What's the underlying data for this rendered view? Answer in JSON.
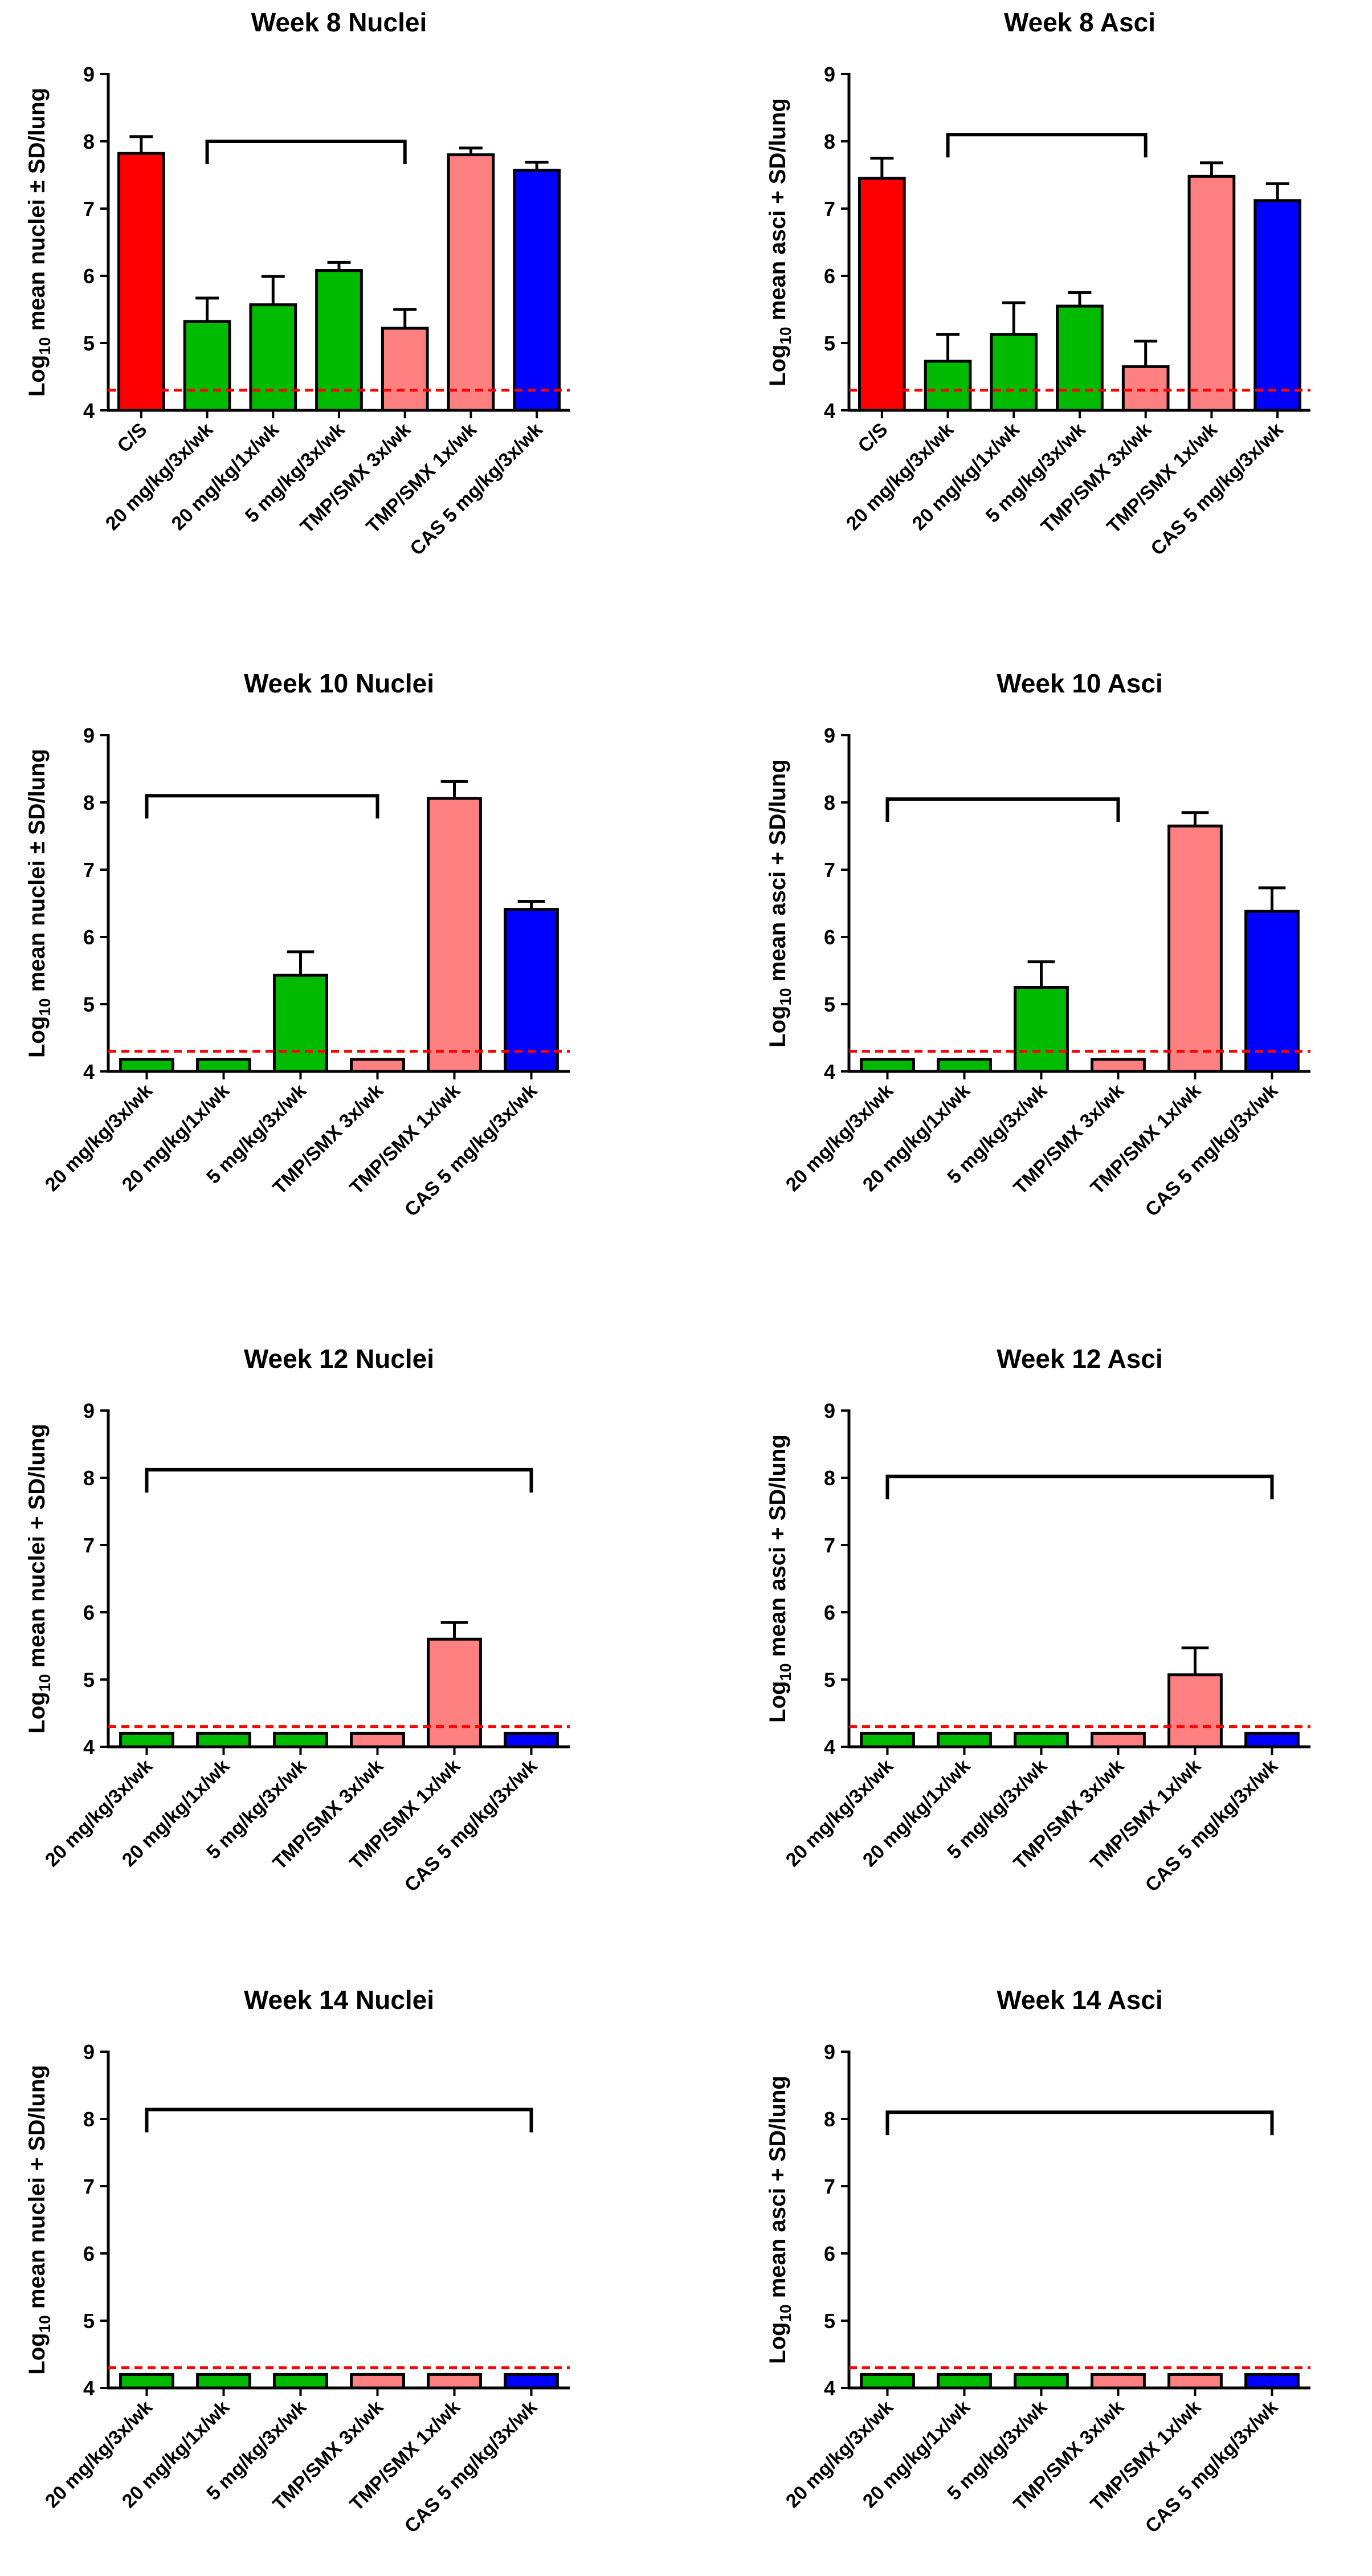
{
  "colors": {
    "red": "#ff0000",
    "green": "#00bb00",
    "pink": "#ff8080",
    "blue": "#0000ff",
    "dashed": "#ff0000",
    "axis": "#000000"
  },
  "chart_data": [
    {
      "type": "bar",
      "title": "Week 8  Nuclei",
      "ylabel_prefix": "Log",
      "ylabel_sub": "10",
      "ylabel_suffix": " mean nuclei ± SD/lung",
      "ylim": [
        4,
        9
      ],
      "yticks": [
        "4",
        "5",
        "6",
        "7",
        "8",
        "9"
      ],
      "detection_limit": 4.3,
      "categories": [
        "C/S",
        "20 mg/kg/3x/wk",
        "20 mg/kg/1x/wk",
        "5 mg/kg/3x/wk",
        "TMP/SMX 3x/wk",
        "TMP/SMX 1x/wk",
        "CAS 5 mg/kg/3x/wk"
      ],
      "values": [
        7.82,
        5.32,
        5.57,
        6.08,
        5.22,
        7.8,
        7.57
      ],
      "errors": [
        0.25,
        0.35,
        0.42,
        0.12,
        0.28,
        0.1,
        0.12
      ],
      "colors": [
        "red",
        "green",
        "green",
        "green",
        "pink",
        "pink",
        "blue"
      ],
      "bracket": {
        "from": 1,
        "to": 4,
        "y": 8.0
      }
    },
    {
      "type": "bar",
      "title": "Week 8 Asci",
      "ylabel_prefix": "Log",
      "ylabel_sub": "10",
      "ylabel_suffix": " mean asci + SD/lung",
      "ylim": [
        4,
        9
      ],
      "yticks": [
        "4",
        "5",
        "6",
        "7",
        "8",
        "9"
      ],
      "detection_limit": 4.3,
      "categories": [
        "C/S",
        "20 mg/kg/3x/wk",
        "20 mg/kg/1x/wk",
        "5 mg/kg/3x/wk",
        "TMP/SMX 3x/wk",
        "TMP/SMX 1x/wk",
        "CAS 5 mg/kg/3x/wk"
      ],
      "values": [
        7.45,
        4.73,
        5.13,
        5.55,
        4.65,
        7.48,
        7.12
      ],
      "errors": [
        0.3,
        0.4,
        0.47,
        0.2,
        0.38,
        0.2,
        0.25
      ],
      "colors": [
        "red",
        "green",
        "green",
        "green",
        "pink",
        "pink",
        "blue"
      ],
      "bracket": {
        "from": 1,
        "to": 4,
        "y": 8.1
      }
    },
    {
      "type": "bar",
      "title": "Week 10 Nuclei",
      "ylabel_prefix": "Log",
      "ylabel_sub": "10",
      "ylabel_suffix": " mean nuclei ± SD/lung",
      "ylim": [
        4,
        9
      ],
      "yticks": [
        "4",
        "5",
        "6",
        "7",
        "8",
        "9"
      ],
      "detection_limit": 4.3,
      "categories": [
        "20 mg/kg/3x/wk",
        "20 mg/kg/1x/wk",
        "5 mg/kg/3x/wk",
        "TMP/SMX 3x/wk",
        "TMP/SMX 1x/wk",
        "CAS 5 mg/kg/3x/wk"
      ],
      "values": [
        4.18,
        4.18,
        5.43,
        4.18,
        8.06,
        6.41
      ],
      "errors": [
        0,
        0,
        0.35,
        0,
        0.25,
        0.12
      ],
      "colors": [
        "green",
        "green",
        "green",
        "pink",
        "pink",
        "blue"
      ],
      "bracket": {
        "from": 0,
        "to": 3,
        "y": 8.1
      }
    },
    {
      "type": "bar",
      "title": "Week 10 Asci",
      "ylabel_prefix": "Log",
      "ylabel_sub": "10",
      "ylabel_suffix": " mean asci + SD/lung",
      "ylim": [
        4,
        9
      ],
      "yticks": [
        "4",
        "5",
        "6",
        "7",
        "8",
        "9"
      ],
      "detection_limit": 4.3,
      "categories": [
        "20 mg/kg/3x/wk",
        "20 mg/kg/1x/wk",
        "5 mg/kg/3x/wk",
        "TMP/SMX 3x/wk",
        "TMP/SMX 1x/wk",
        "CAS 5 mg/kg/3x/wk"
      ],
      "values": [
        4.18,
        4.18,
        5.25,
        4.18,
        7.65,
        6.38
      ],
      "errors": [
        0,
        0,
        0.38,
        0,
        0.2,
        0.35
      ],
      "colors": [
        "green",
        "green",
        "green",
        "pink",
        "pink",
        "blue"
      ],
      "bracket": {
        "from": 0,
        "to": 3,
        "y": 8.05
      }
    },
    {
      "type": "bar",
      "title": "Week 12 Nuclei",
      "ylabel_prefix": "Log",
      "ylabel_sub": "10",
      "ylabel_suffix": " mean nuclei + SD/lung",
      "ylim": [
        4,
        9
      ],
      "yticks": [
        "4",
        "5",
        "6",
        "7",
        "8",
        "9"
      ],
      "detection_limit": 4.3,
      "categories": [
        "20 mg/kg/3x/wk",
        "20 mg/kg/1x/wk",
        "5 mg/kg/3x/wk",
        "TMP/SMX 3x/wk",
        "TMP/SMX 1x/wk",
        "CAS 5 mg/kg/3x/wk"
      ],
      "values": [
        4.2,
        4.2,
        4.2,
        4.2,
        5.6,
        4.2
      ],
      "errors": [
        0,
        0,
        0,
        0,
        0.25,
        0
      ],
      "colors": [
        "green",
        "green",
        "green",
        "pink",
        "pink",
        "blue"
      ],
      "bracket": {
        "from": 0,
        "to": 5,
        "y": 8.12
      }
    },
    {
      "type": "bar",
      "title": "Week 12 Asci",
      "ylabel_prefix": "Log",
      "ylabel_sub": "10",
      "ylabel_suffix": " mean asci + SD/lung",
      "ylim": [
        4,
        9
      ],
      "yticks": [
        "4",
        "5",
        "6",
        "7",
        "8",
        "9"
      ],
      "detection_limit": 4.3,
      "categories": [
        "20 mg/kg/3x/wk",
        "20 mg/kg/1x/wk",
        "5 mg/kg/3x/wk",
        "TMP/SMX 3x/wk",
        "TMP/SMX 1x/wk",
        "CAS 5 mg/kg/3x/wk"
      ],
      "values": [
        4.2,
        4.2,
        4.2,
        4.2,
        5.07,
        4.2
      ],
      "errors": [
        0,
        0,
        0,
        0,
        0.4,
        0
      ],
      "colors": [
        "green",
        "green",
        "green",
        "pink",
        "pink",
        "blue"
      ],
      "bracket": {
        "from": 0,
        "to": 5,
        "y": 8.02
      }
    },
    {
      "type": "bar",
      "title": "Week 14 Nuclei",
      "ylabel_prefix": "Log",
      "ylabel_sub": "10",
      "ylabel_suffix": " mean nuclei + SD/lung",
      "ylim": [
        4,
        9
      ],
      "yticks": [
        "4",
        "5",
        "6",
        "7",
        "8",
        "9"
      ],
      "detection_limit": 4.3,
      "categories": [
        "20 mg/kg/3x/wk",
        "20 mg/kg/1x/wk",
        "5 mg/kg/3x/wk",
        "TMP/SMX 3x/wk",
        "TMP/SMX 1x/wk",
        "CAS 5 mg/kg/3x/wk"
      ],
      "values": [
        4.2,
        4.2,
        4.2,
        4.2,
        4.2,
        4.2
      ],
      "errors": [
        0,
        0,
        0,
        0,
        0,
        0
      ],
      "colors": [
        "green",
        "green",
        "green",
        "pink",
        "pink",
        "blue"
      ],
      "bracket": {
        "from": 0,
        "to": 5,
        "y": 8.14
      }
    },
    {
      "type": "bar",
      "title": "Week 14 Asci",
      "ylabel_prefix": "Log",
      "ylabel_sub": "10",
      "ylabel_suffix": " mean asci + SD/lung",
      "ylim": [
        4,
        9
      ],
      "yticks": [
        "4",
        "5",
        "6",
        "7",
        "8",
        "9"
      ],
      "detection_limit": 4.3,
      "categories": [
        "20 mg/kg/3x/wk",
        "20 mg/kg/1x/wk",
        "5 mg/kg/3x/wk",
        "TMP/SMX 3x/wk",
        "TMP/SMX 1x/wk",
        "CAS 5 mg/kg/3x/wk"
      ],
      "values": [
        4.2,
        4.2,
        4.2,
        4.2,
        4.2,
        4.2
      ],
      "errors": [
        0,
        0,
        0,
        0,
        0,
        0
      ],
      "colors": [
        "green",
        "green",
        "green",
        "pink",
        "pink",
        "blue"
      ],
      "bracket": {
        "from": 0,
        "to": 5,
        "y": 8.1
      }
    }
  ]
}
